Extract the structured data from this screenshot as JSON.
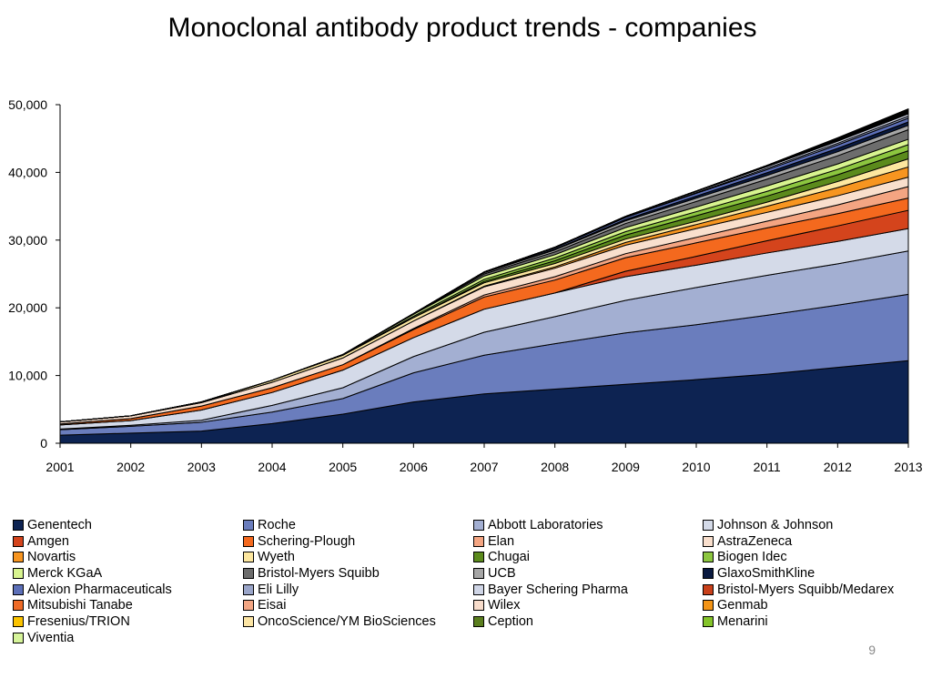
{
  "slide": {
    "title": "Monoclonal antibody product trends - companies",
    "page_number": "9"
  },
  "chart_data": {
    "type": "area",
    "stacked": true,
    "title": "",
    "xlabel": "",
    "ylabel": "",
    "x": [
      "2001",
      "2002",
      "2003",
      "2004",
      "2005",
      "2006",
      "2007",
      "2008",
      "2009",
      "2010",
      "2011",
      "2012",
      "2013"
    ],
    "ylim": [
      0,
      50000
    ],
    "yticks": [
      0,
      10000,
      20000,
      30000,
      40000,
      50000
    ],
    "ytick_labels": [
      "0",
      "10,000",
      "20,000",
      "30,000",
      "40,000",
      "50,000"
    ],
    "grid": false,
    "legend_position": "bottom",
    "series": [
      {
        "name": "Genentech",
        "color": "#0d2352",
        "values": [
          1200,
          1500,
          1800,
          2900,
          4300,
          6100,
          7300,
          8000,
          8700,
          9400,
          10200,
          11200,
          12200
        ]
      },
      {
        "name": "Roche",
        "color": "#6a7dbd",
        "values": [
          800,
          1000,
          1300,
          1700,
          2300,
          4300,
          5700,
          6700,
          7600,
          8100,
          8700,
          9200,
          9800
        ]
      },
      {
        "name": "Abbott Laboratories",
        "color": "#a3afd2",
        "values": [
          100,
          150,
          300,
          1000,
          1600,
          2400,
          3400,
          4000,
          4800,
          5500,
          5900,
          6100,
          6400
        ]
      },
      {
        "name": "Johnson & Johnson",
        "color": "#d4dae8",
        "values": [
          600,
          700,
          1500,
          1900,
          2600,
          2800,
          3400,
          3500,
          3500,
          3300,
          3300,
          3300,
          3300
        ]
      },
      {
        "name": "Amgen",
        "color": "#d4441c",
        "values": [
          0,
          0,
          0,
          0,
          0,
          0,
          0,
          0,
          800,
          1300,
          1800,
          2300,
          2700
        ]
      },
      {
        "name": "Schering-Plough",
        "color": "#f4691e",
        "values": [
          150,
          300,
          600,
          700,
          800,
          1200,
          1800,
          1900,
          2000,
          2000,
          1900,
          1800,
          1800
        ]
      },
      {
        "name": "Elan",
        "color": "#f4a582",
        "values": [
          0,
          0,
          0,
          0,
          0,
          150,
          300,
          500,
          600,
          800,
          1000,
          1300,
          1700
        ]
      },
      {
        "name": "AstraZeneca",
        "color": "#f9dfcd",
        "values": [
          300,
          400,
          500,
          800,
          1000,
          1100,
          1200,
          1250,
          1250,
          1300,
          1300,
          1350,
          1400
        ]
      },
      {
        "name": "Novartis",
        "color": "#f79520",
        "values": [
          0,
          0,
          0,
          0,
          0,
          0,
          100,
          200,
          400,
          600,
          900,
          1200,
          1500
        ]
      },
      {
        "name": "Wyeth",
        "color": "#fde79f",
        "values": [
          0,
          0,
          100,
          300,
          400,
          500,
          500,
          500,
          500,
          500,
          600,
          900,
          1200
        ]
      },
      {
        "name": "Chugai",
        "color": "#5b8a1c",
        "values": [
          0,
          0,
          0,
          0,
          0,
          0,
          200,
          400,
          600,
          800,
          900,
          1000,
          1200
        ]
      },
      {
        "name": "Biogen Idec",
        "color": "#8cc63f",
        "values": [
          0,
          0,
          0,
          0,
          0,
          200,
          300,
          400,
          500,
          600,
          700,
          800,
          900
        ]
      },
      {
        "name": "Merck KGaA",
        "color": "#d8f48f",
        "values": [
          0,
          0,
          0,
          0,
          100,
          300,
          500,
          500,
          600,
          700,
          800,
          800,
          800
        ]
      },
      {
        "name": "Bristol-Myers Squibb",
        "color": "#6d6d6d",
        "values": [
          0,
          0,
          0,
          0,
          0,
          0,
          300,
          400,
          600,
          800,
          1000,
          1200,
          1400
        ]
      },
      {
        "name": "UCB",
        "color": "#a6a6a6",
        "values": [
          0,
          0,
          0,
          0,
          0,
          100,
          200,
          300,
          400,
          500,
          550,
          600,
          650
        ]
      },
      {
        "name": "GlaxoSmithKline",
        "color": "#0a1a40",
        "values": [
          0,
          0,
          0,
          0,
          0,
          0,
          0,
          100,
          200,
          300,
          400,
          500,
          500
        ]
      },
      {
        "name": "Alexion Pharmaceuticals",
        "color": "#5c6fb8",
        "values": [
          0,
          0,
          0,
          0,
          0,
          0,
          100,
          200,
          300,
          400,
          450,
          500,
          550
        ]
      },
      {
        "name": "Eli Lilly",
        "color": "#9aa5c9",
        "values": [
          0,
          0,
          0,
          0,
          0,
          0,
          0,
          0,
          0,
          100,
          200,
          250,
          300
        ]
      },
      {
        "name": "Bayer Schering Pharma",
        "color": "#cfd5e6",
        "values": [
          0,
          0,
          0,
          0,
          0,
          0,
          0,
          100,
          150,
          200,
          250,
          300,
          350
        ]
      },
      {
        "name": "Bristol-Myers Squibb/Medarex",
        "color": "#c9401a",
        "values": [
          0,
          0,
          0,
          0,
          0,
          0,
          0,
          0,
          0,
          0,
          0,
          50,
          100
        ]
      },
      {
        "name": "Mitsubishi Tanabe",
        "color": "#ef6b27",
        "values": [
          0,
          0,
          0,
          0,
          0,
          0,
          0,
          0,
          0,
          0,
          50,
          80,
          100
        ]
      },
      {
        "name": "Eisai",
        "color": "#f3a684",
        "values": [
          0,
          0,
          0,
          0,
          0,
          0,
          0,
          0,
          0,
          0,
          0,
          50,
          80
        ]
      },
      {
        "name": "Wilex",
        "color": "#f7dccb",
        "values": [
          0,
          0,
          0,
          0,
          0,
          0,
          0,
          0,
          0,
          0,
          30,
          60,
          80
        ]
      },
      {
        "name": "Genmab",
        "color": "#f39416",
        "values": [
          0,
          0,
          0,
          0,
          0,
          0,
          0,
          0,
          0,
          50,
          80,
          100,
          100
        ]
      },
      {
        "name": "Fresenius/TRION",
        "color": "#fbc300",
        "values": [
          0,
          0,
          0,
          0,
          0,
          0,
          0,
          0,
          0,
          0,
          0,
          30,
          50
        ]
      },
      {
        "name": "OncoScience/YM BioSciences",
        "color": "#fce5a4",
        "values": [
          0,
          0,
          0,
          0,
          0,
          0,
          0,
          0,
          0,
          0,
          30,
          50,
          70
        ]
      },
      {
        "name": "Ception",
        "color": "#5a7e1e",
        "values": [
          0,
          0,
          0,
          0,
          0,
          0,
          0,
          0,
          0,
          0,
          0,
          30,
          50
        ]
      },
      {
        "name": "Menarini",
        "color": "#84c42a",
        "values": [
          0,
          0,
          0,
          0,
          0,
          0,
          0,
          0,
          0,
          0,
          0,
          30,
          50
        ]
      },
      {
        "name": "Viventia",
        "color": "#d6f49a",
        "values": [
          0,
          0,
          0,
          0,
          0,
          0,
          0,
          0,
          0,
          0,
          0,
          30,
          50
        ]
      }
    ]
  }
}
